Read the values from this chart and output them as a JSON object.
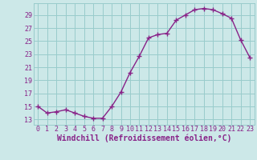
{
  "x": [
    0,
    1,
    2,
    3,
    4,
    5,
    6,
    7,
    8,
    9,
    10,
    11,
    12,
    13,
    14,
    15,
    16,
    17,
    18,
    19,
    20,
    21,
    22,
    23
  ],
  "y": [
    15.0,
    14.0,
    14.2,
    14.5,
    14.0,
    13.5,
    13.2,
    13.2,
    15.0,
    17.2,
    20.2,
    22.7,
    25.5,
    26.0,
    26.2,
    28.2,
    29.0,
    29.8,
    30.0,
    29.8,
    29.2,
    28.5,
    25.2,
    22.5
  ],
  "line_color": "#882288",
  "marker": "+",
  "marker_size": 4,
  "marker_linewidth": 1.0,
  "line_width": 1.0,
  "bg_color": "#cce8e8",
  "grid_color": "#99cccc",
  "xlabel": "Windchill (Refroidissement éolien,°C)",
  "xlabel_color": "#882288",
  "tick_color": "#882288",
  "xlabel_fontsize": 7,
  "tick_fontsize": 6,
  "ytick_start": 13,
  "ytick_end": 29,
  "ytick_step": 2,
  "xlim": [
    -0.5,
    23.5
  ],
  "ylim": [
    12.2,
    30.8
  ]
}
